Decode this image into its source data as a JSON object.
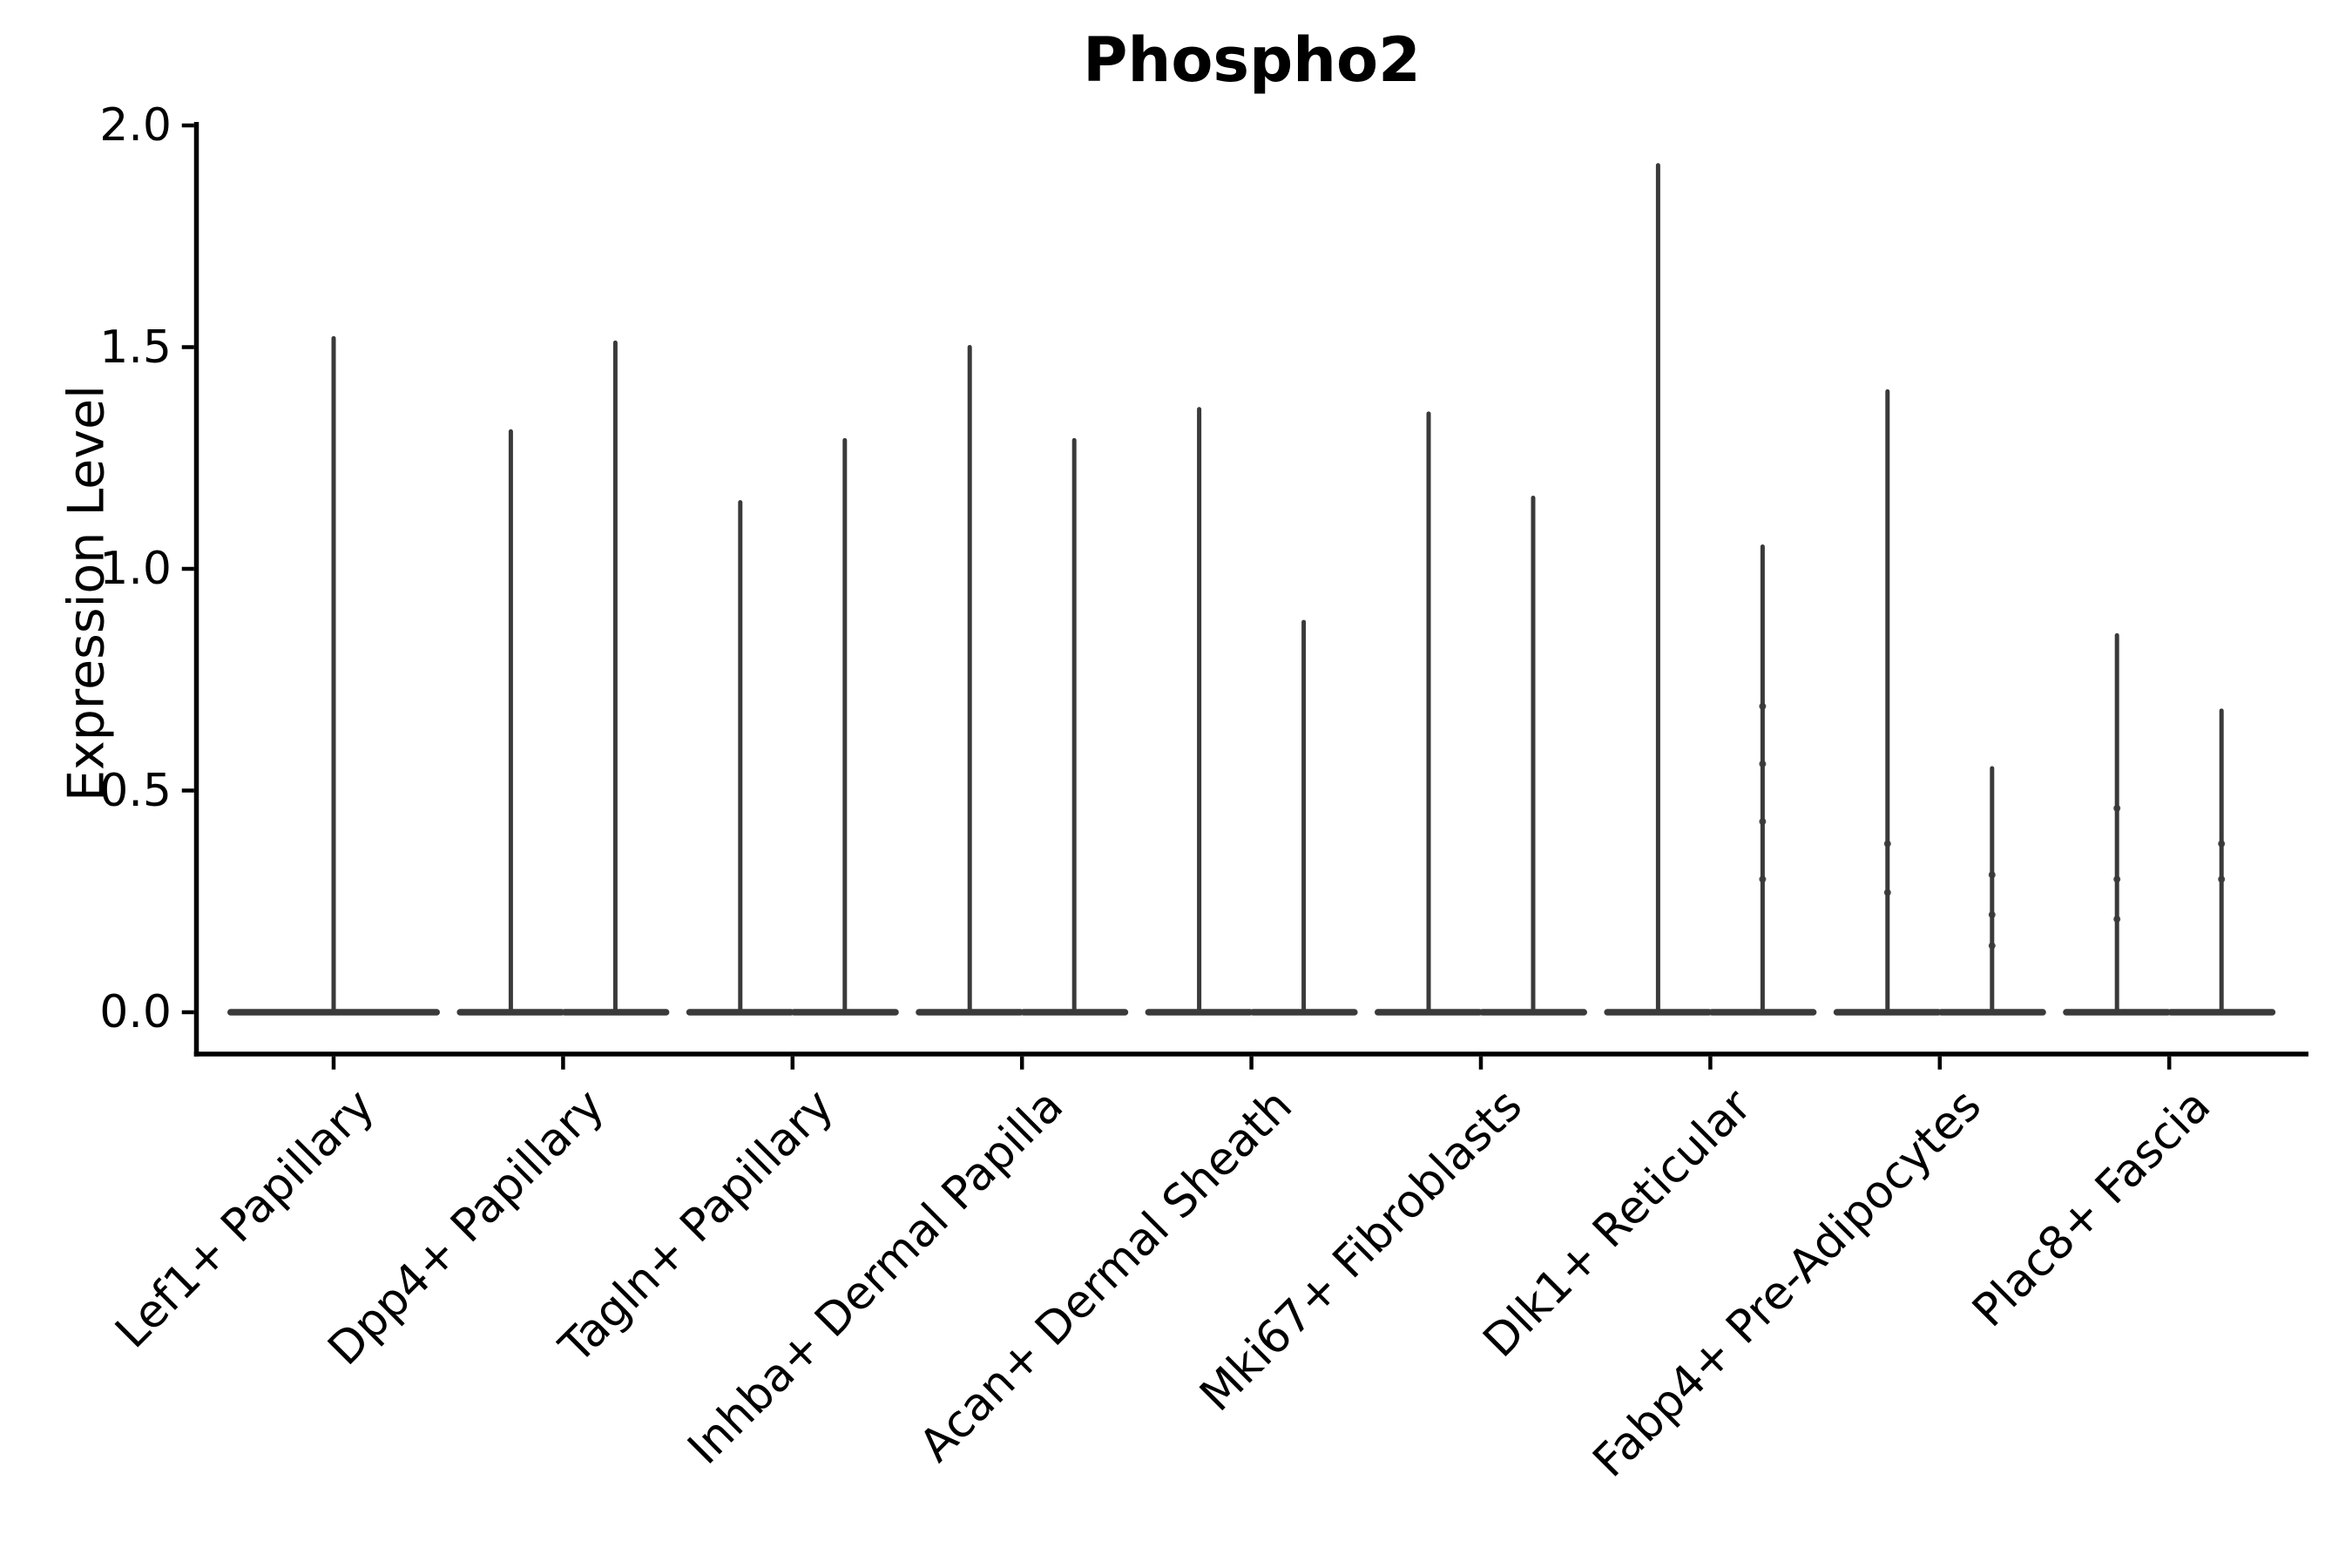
{
  "chart_data": {
    "type": "violin",
    "title": "Phospho2",
    "ylabel": "Expression Level",
    "xlabel": "",
    "ylim": [
      0.0,
      2.0
    ],
    "yticks": [
      0.0,
      0.5,
      1.0,
      1.5,
      2.0
    ],
    "ytick_labels": [
      "0.0",
      "0.5",
      "1.0",
      "1.5",
      "2.0"
    ],
    "grid": false,
    "legend_position": "none",
    "baseline_value": 0.0,
    "categories": [
      "Lef1+ Papillary",
      "Dpp4+ Papillary",
      "Tagln+ Papillary",
      "Inhba+ Dermal Papilla",
      "Acan+ Dermal Sheath",
      "Mki67+ Fibroblasts",
      "Dlk1+ Reticular",
      "Fabp4+ Pre-Adipocytes",
      "Plac8+ Fascia"
    ],
    "groups": [
      {
        "category": "Lef1+ Papillary",
        "violins": [
          {
            "max": 1.52,
            "points": []
          }
        ]
      },
      {
        "category": "Dpp4+ Papillary",
        "violins": [
          {
            "max": 1.31,
            "points": []
          },
          {
            "max": 1.51,
            "points": []
          }
        ]
      },
      {
        "category": "Tagln+ Papillary",
        "violins": [
          {
            "max": 1.15,
            "points": []
          },
          {
            "max": 1.29,
            "points": []
          }
        ]
      },
      {
        "category": "Inhba+ Dermal Papilla",
        "violins": [
          {
            "max": 1.5,
            "points": []
          },
          {
            "max": 1.29,
            "points": []
          }
        ]
      },
      {
        "category": "Acan+ Dermal Sheath",
        "violins": [
          {
            "max": 1.36,
            "points": []
          },
          {
            "max": 0.88,
            "points": []
          }
        ]
      },
      {
        "category": "Mki67+ Fibroblasts",
        "violins": [
          {
            "max": 1.35,
            "points": []
          },
          {
            "max": 1.16,
            "points": []
          }
        ]
      },
      {
        "category": "Dlk1+ Reticular",
        "violins": [
          {
            "max": 1.91,
            "points": []
          },
          {
            "max": 1.05,
            "points": [
              0.69,
              0.56,
              0.43,
              0.3
            ]
          }
        ]
      },
      {
        "category": "Fabp4+ Pre-Adipocytes",
        "violins": [
          {
            "max": 1.4,
            "points": [
              0.38,
              0.27
            ]
          },
          {
            "max": 0.55,
            "points": [
              0.31,
              0.22,
              0.15
            ]
          }
        ]
      },
      {
        "category": "Plac8+ Fascia",
        "violins": [
          {
            "max": 0.85,
            "points": [
              0.46,
              0.3,
              0.21
            ]
          },
          {
            "max": 0.68,
            "points": [
              0.38,
              0.3
            ]
          }
        ]
      }
    ],
    "colors": {
      "violin": "#3a3a3a",
      "axis": "#000000",
      "text": "#000000",
      "background": "#ffffff"
    }
  }
}
